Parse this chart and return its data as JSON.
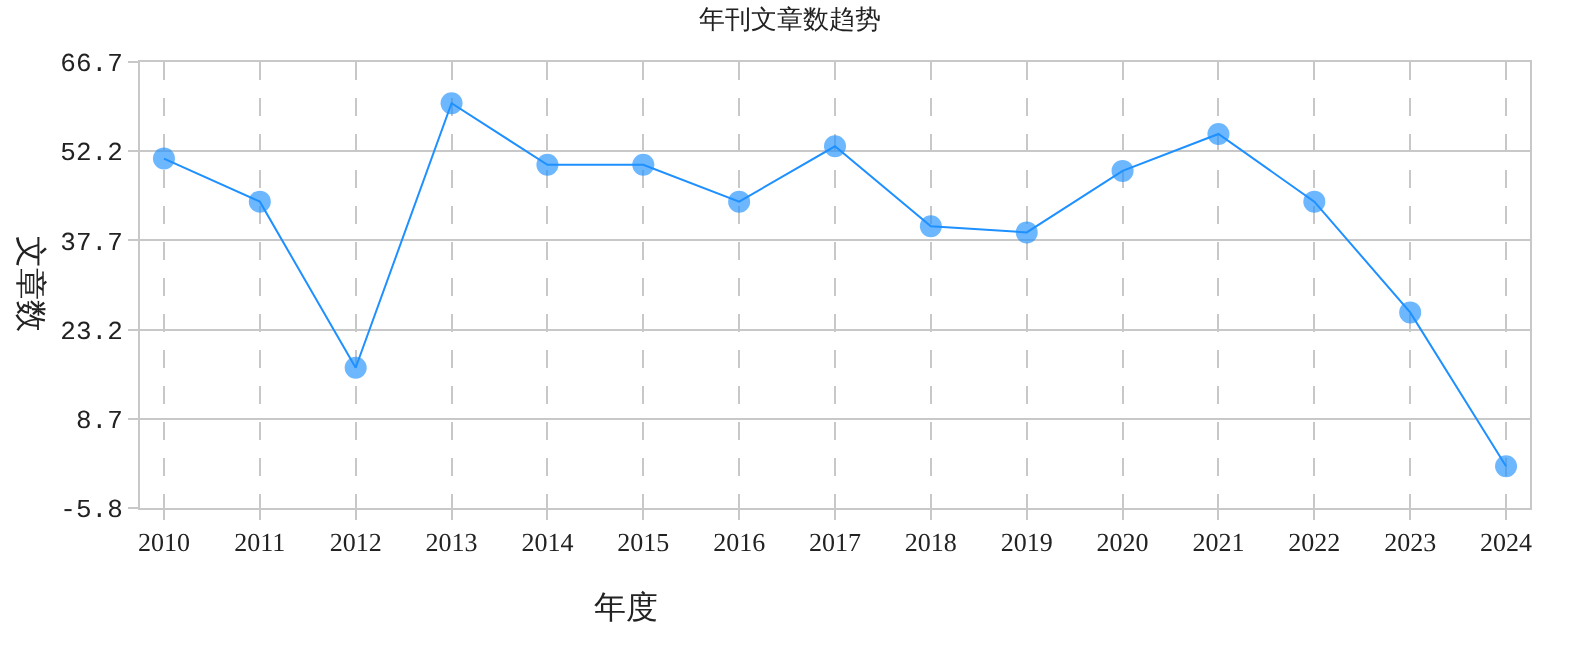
{
  "chart_data": {
    "type": "line",
    "title": "年刊文章数趋势",
    "xlabel": "年度",
    "ylabel": "文章数",
    "categories": [
      "2010",
      "2011",
      "2012",
      "2013",
      "2014",
      "2015",
      "2016",
      "2017",
      "2018",
      "2019",
      "2020",
      "2021",
      "2022",
      "2023",
      "2024"
    ],
    "series": [
      {
        "color": "#1e90ff",
        "values": [
          51,
          44,
          17,
          60,
          50,
          50,
          44,
          53,
          40,
          39,
          49,
          55,
          44,
          26,
          1
        ]
      }
    ],
    "ylim": [
      -5.8,
      66.7
    ],
    "yticks": [
      -5.8,
      8.7,
      23.2,
      37.7,
      52.2,
      66.7
    ],
    "grid": true,
    "marker": "circle",
    "line_style": "solid",
    "legend": false
  }
}
